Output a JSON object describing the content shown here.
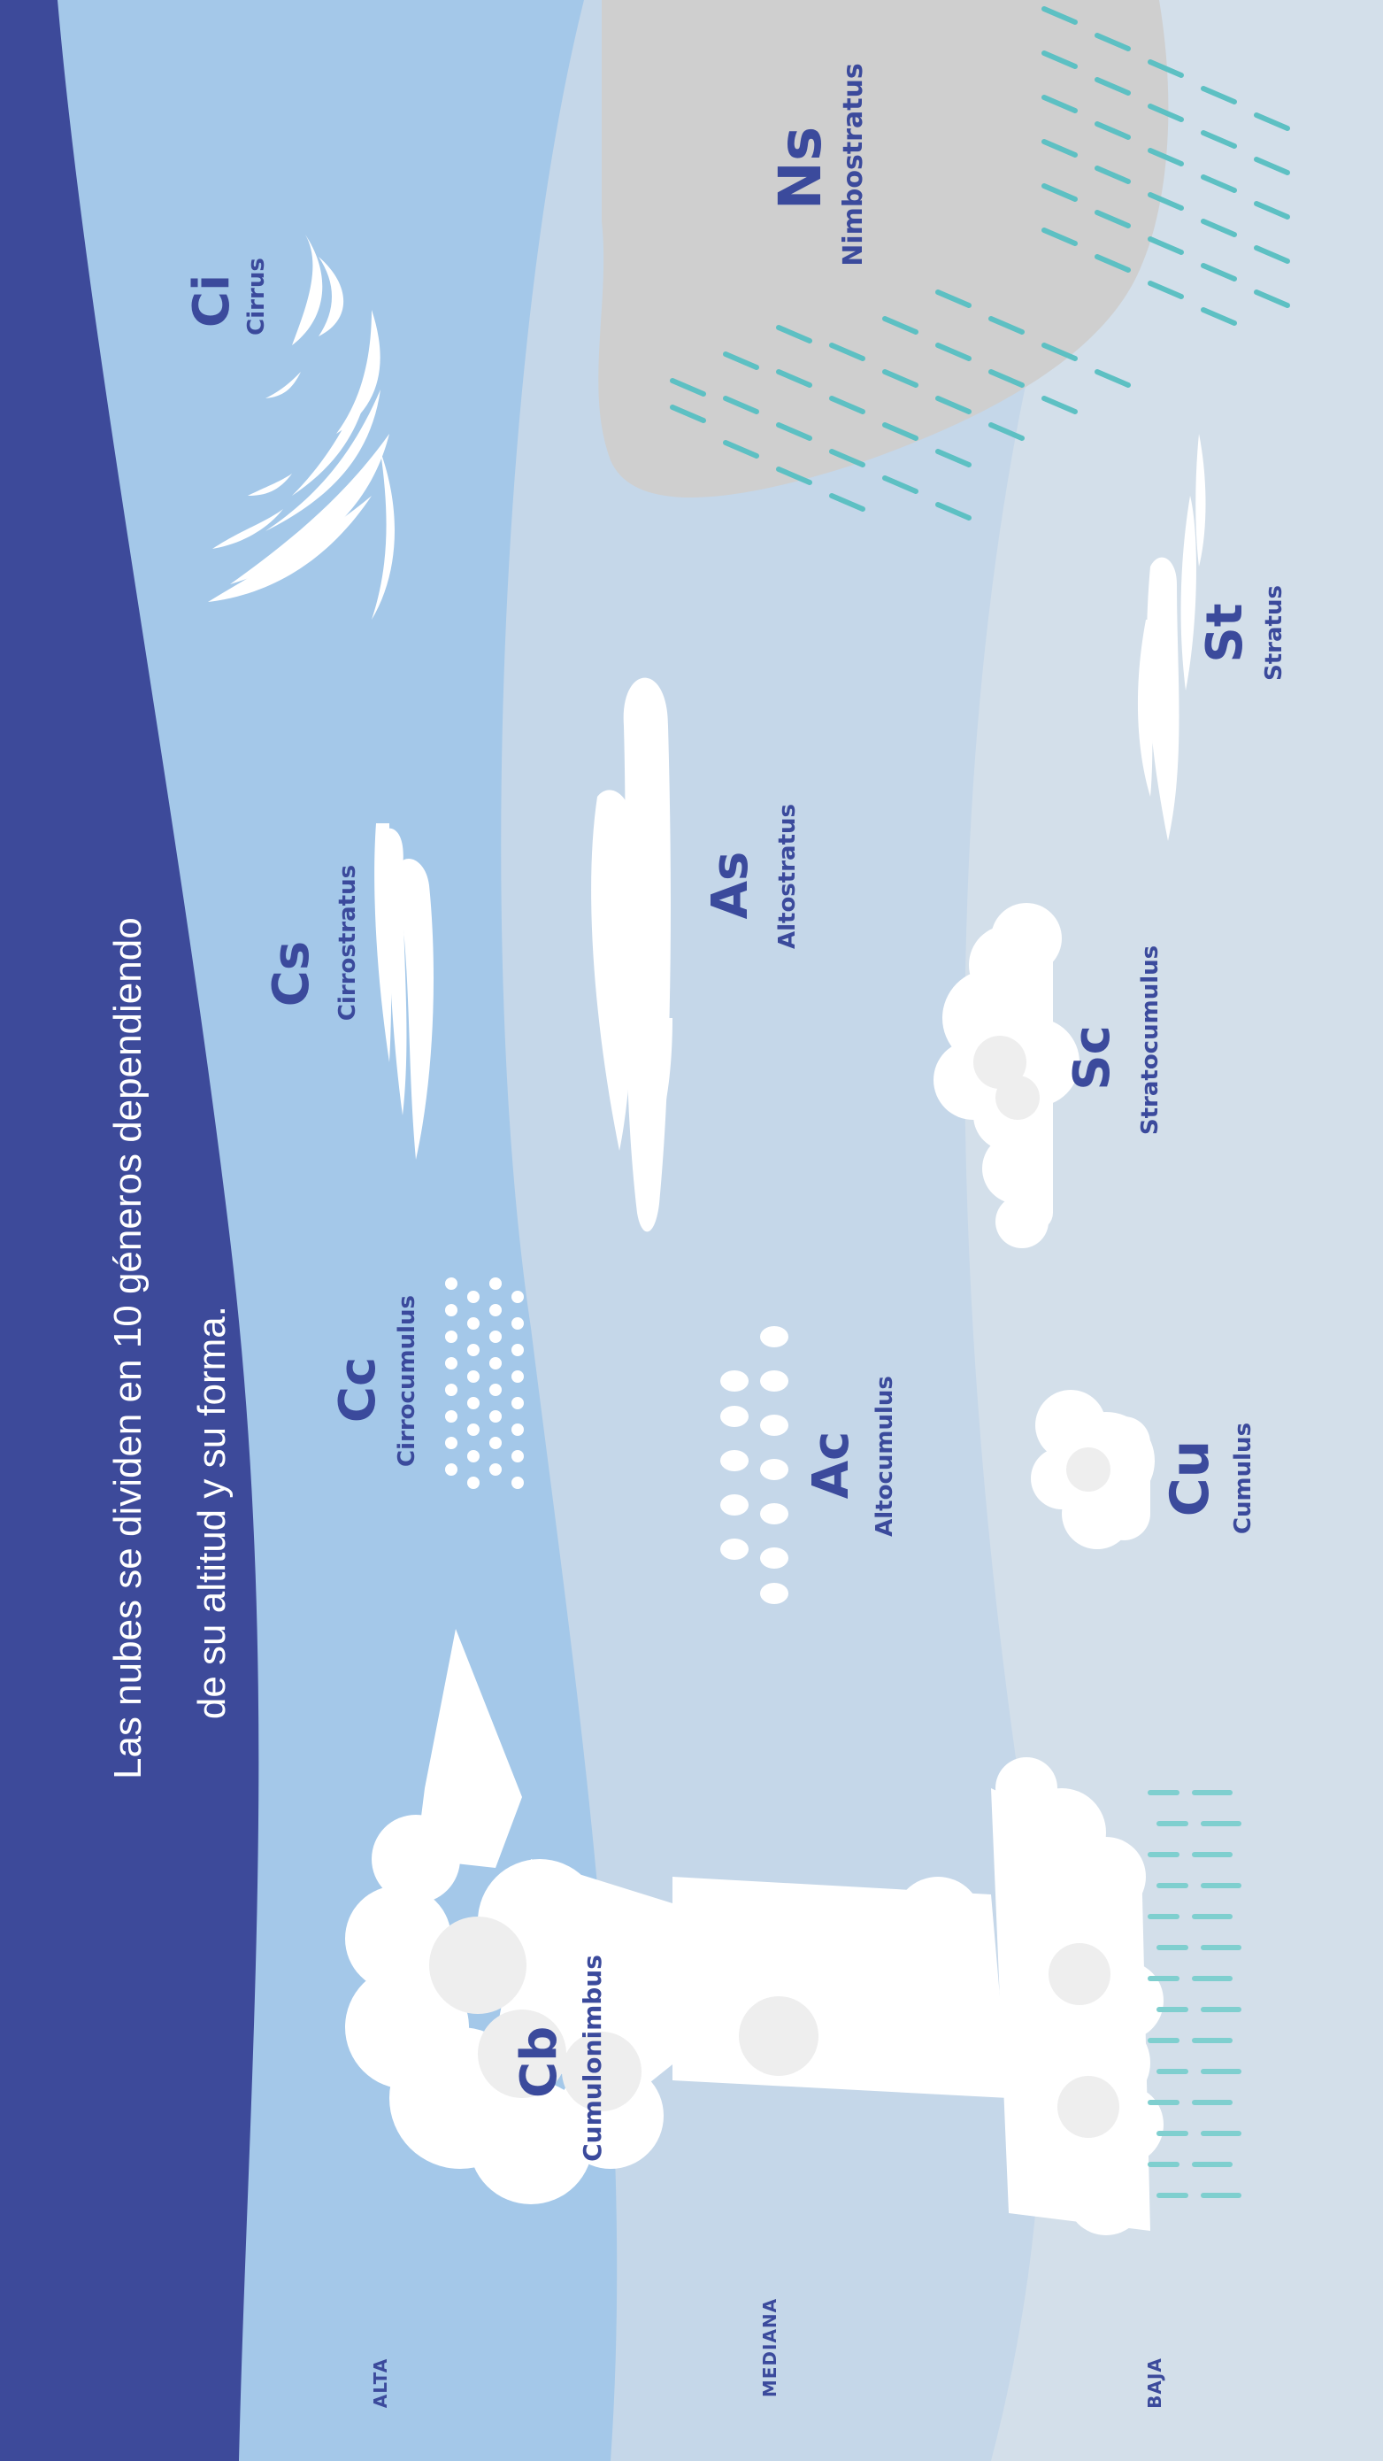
{
  "title": {
    "line1": "Las nubes se dividen en 10 géneros dependiendo",
    "line2": "de su altitud y su forma."
  },
  "zones": [
    {
      "label": "ALTA"
    },
    {
      "label": "MEDIANA"
    },
    {
      "label": "BAJA"
    }
  ],
  "clouds": [
    {
      "abbr": "Ci",
      "name": "Cirrus"
    },
    {
      "abbr": "Cs",
      "name": "Cirrostratus"
    },
    {
      "abbr": "Cc",
      "name": "Cirrocumulus"
    },
    {
      "abbr": "Cb",
      "name": "Cumulonimbus"
    },
    {
      "abbr": "As",
      "name": "Altostratus"
    },
    {
      "abbr": "Ac",
      "name": "Altocumulus"
    },
    {
      "abbr": "Ns",
      "name": "Nimbostratus"
    },
    {
      "abbr": "Sc",
      "name": "Stratocumulus"
    },
    {
      "abbr": "Cu",
      "name": "Cumulus"
    },
    {
      "abbr": "St",
      "name": "Stratus"
    }
  ],
  "colors": {
    "title_band": "#3d4a9a",
    "high_band": "#a4c8e9",
    "mid_band": "#c5d7e9",
    "low_band": "#d3dfea",
    "text": "#3b4a9c",
    "cloud": "#ffffff",
    "rain": "#5dc0c3",
    "nimbostratus": "#cfcfcf"
  }
}
